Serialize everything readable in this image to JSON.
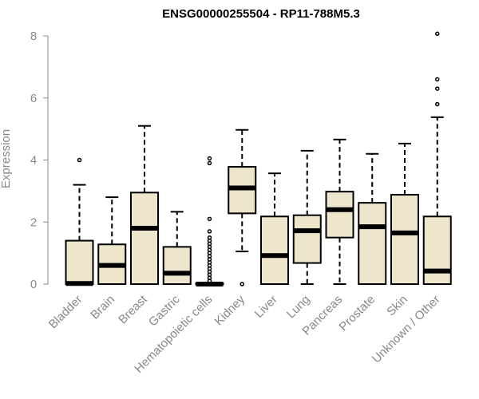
{
  "chart_data": {
    "type": "box",
    "title": "ENSG00000255504 - RP11-788M5.3",
    "ylabel": "Expression",
    "xlabel": "",
    "ylim": [
      0,
      8
    ],
    "yticks": [
      0,
      2,
      4,
      6,
      8
    ],
    "grid": false,
    "colors": {
      "box_fill": "#ede6cc",
      "stroke": "#000000",
      "axis_text": "#888888"
    },
    "categories": [
      "Bladder",
      "Brain",
      "Breast",
      "Gastric",
      "Hematopoietic cells",
      "Kidney",
      "Liver",
      "Lung",
      "Pancreas",
      "Prostate",
      "Skin",
      "Unknown / Other"
    ],
    "boxes": [
      {
        "category": "Bladder",
        "whisker_low": 0,
        "q1": 0,
        "median": 0.02,
        "q3": 1.4,
        "whisker_high": 3.2,
        "outliers": [
          4.0
        ]
      },
      {
        "category": "Brain",
        "whisker_low": 0,
        "q1": 0,
        "median": 0.6,
        "q3": 1.28,
        "whisker_high": 2.8,
        "outliers": []
      },
      {
        "category": "Breast",
        "whisker_low": 0,
        "q1": 0,
        "median": 1.8,
        "q3": 2.95,
        "whisker_high": 5.1,
        "outliers": []
      },
      {
        "category": "Gastric",
        "whisker_low": 0,
        "q1": 0,
        "median": 0.35,
        "q3": 1.2,
        "whisker_high": 2.33,
        "outliers": []
      },
      {
        "category": "Hematopoietic cells",
        "whisker_low": 0,
        "q1": 0,
        "median": 0,
        "q3": 0.02,
        "whisker_high": 0.05,
        "outliers": [
          0.1,
          0.2,
          0.3,
          0.4,
          0.5,
          0.6,
          0.7,
          0.8,
          0.9,
          1.0,
          1.1,
          1.2,
          1.3,
          1.4,
          1.5,
          1.7,
          2.1,
          3.9,
          4.05
        ]
      },
      {
        "category": "Kidney",
        "whisker_low": 1.05,
        "q1": 2.28,
        "median": 3.1,
        "q3": 3.78,
        "whisker_high": 4.97,
        "outliers": [
          0
        ]
      },
      {
        "category": "Liver",
        "whisker_low": 0,
        "q1": 0,
        "median": 0.92,
        "q3": 2.18,
        "whisker_high": 3.57,
        "outliers": []
      },
      {
        "category": "Lung",
        "whisker_low": 0,
        "q1": 0.68,
        "median": 1.72,
        "q3": 2.22,
        "whisker_high": 4.3,
        "outliers": []
      },
      {
        "category": "Pancreas",
        "whisker_low": 0,
        "q1": 1.5,
        "median": 2.4,
        "q3": 2.98,
        "whisker_high": 4.66,
        "outliers": []
      },
      {
        "category": "Prostate",
        "whisker_low": 0,
        "q1": 0,
        "median": 1.85,
        "q3": 2.62,
        "whisker_high": 4.2,
        "outliers": []
      },
      {
        "category": "Skin",
        "whisker_low": 0,
        "q1": 0,
        "median": 1.65,
        "q3": 2.88,
        "whisker_high": 4.53,
        "outliers": []
      },
      {
        "category": "Unknown / Other",
        "whisker_low": 0,
        "q1": 0,
        "median": 0.42,
        "q3": 2.18,
        "whisker_high": 5.38,
        "outliers": [
          5.8,
          6.3,
          6.6,
          8.07
        ]
      }
    ]
  }
}
